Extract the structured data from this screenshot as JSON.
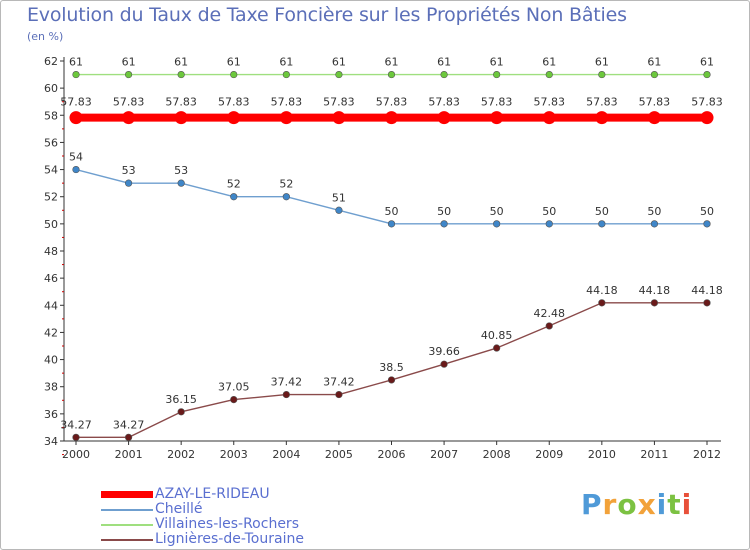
{
  "chart_data": {
    "type": "line",
    "title": "Evolution du Taux de Taxe Foncière sur les Propriétés Non Bâties",
    "subtitle": "(en %)",
    "x": [
      2000,
      2001,
      2002,
      2003,
      2004,
      2005,
      2006,
      2007,
      2008,
      2009,
      2010,
      2011,
      2012
    ],
    "x_tick_labels": [
      "2000",
      "2001",
      "2002",
      "2003",
      "2004",
      "2005",
      "2006",
      "2007",
      "2008",
      "2009",
      "2010",
      "2011",
      "2012"
    ],
    "ylim": [
      34,
      62
    ],
    "y_ticks": [
      34,
      36,
      38,
      40,
      42,
      44,
      46,
      48,
      50,
      52,
      54,
      56,
      58,
      60,
      62
    ],
    "y_tick_labels": [
      "34",
      "36",
      "38",
      "40",
      "42",
      "44",
      "46",
      "48",
      "50",
      "52",
      "54",
      "56",
      "58",
      "60",
      "62"
    ],
    "grid": false,
    "legend_position": "bottom-left",
    "series": [
      {
        "name": "AZAY-LE-RIDEAU",
        "color": "#ff0000",
        "marker_color": "#ff0000",
        "bold": true,
        "values": [
          57.83,
          57.83,
          57.83,
          57.83,
          57.83,
          57.83,
          57.83,
          57.83,
          57.83,
          57.83,
          57.83,
          57.83,
          57.83
        ],
        "labels": [
          "57.83",
          "57.83",
          "57.83",
          "57.83",
          "57.83",
          "57.83",
          "57.83",
          "57.83",
          "57.83",
          "57.83",
          "57.83",
          "57.83",
          "57.83"
        ]
      },
      {
        "name": "Cheillé",
        "color": "#6f9fcf",
        "marker_color": "#3f86c8",
        "bold": false,
        "values": [
          54,
          53,
          53,
          52,
          52,
          51,
          50,
          50,
          50,
          50,
          50,
          50,
          50
        ],
        "labels": [
          "54",
          "53",
          "53",
          "52",
          "52",
          "51",
          "50",
          "50",
          "50",
          "50",
          "50",
          "50",
          "50"
        ]
      },
      {
        "name": "Villaines-les-Rochers",
        "color": "#9fdf7f",
        "marker_color": "#6cc83c",
        "bold": false,
        "values": [
          61,
          61,
          61,
          61,
          61,
          61,
          61,
          61,
          61,
          61,
          61,
          61,
          61
        ],
        "labels": [
          "61",
          "61",
          "61",
          "61",
          "61",
          "61",
          "61",
          "61",
          "61",
          "61",
          "61",
          "61",
          "61"
        ]
      },
      {
        "name": "Lignières-de-Touraine",
        "color": "#8a4a4a",
        "marker_color": "#6a1a1a",
        "bold": false,
        "values": [
          34.27,
          34.27,
          36.15,
          37.05,
          37.42,
          37.42,
          38.5,
          39.66,
          40.85,
          42.48,
          44.18,
          44.18,
          44.18
        ],
        "labels": [
          "34.27",
          "34.27",
          "36.15",
          "37.05",
          "37.42",
          "37.42",
          "38.5",
          "39.66",
          "40.85",
          "42.48",
          "44.18",
          "44.18",
          "44.18"
        ]
      }
    ]
  },
  "brand": {
    "letters": [
      "P",
      "r",
      "o",
      "x",
      "i",
      "t",
      "i"
    ],
    "colors": [
      "#4f9ad8",
      "#f2a23a",
      "#7cc242",
      "#f2a23a",
      "#4f9ad8",
      "#7cc242",
      "#e8503a"
    ]
  }
}
